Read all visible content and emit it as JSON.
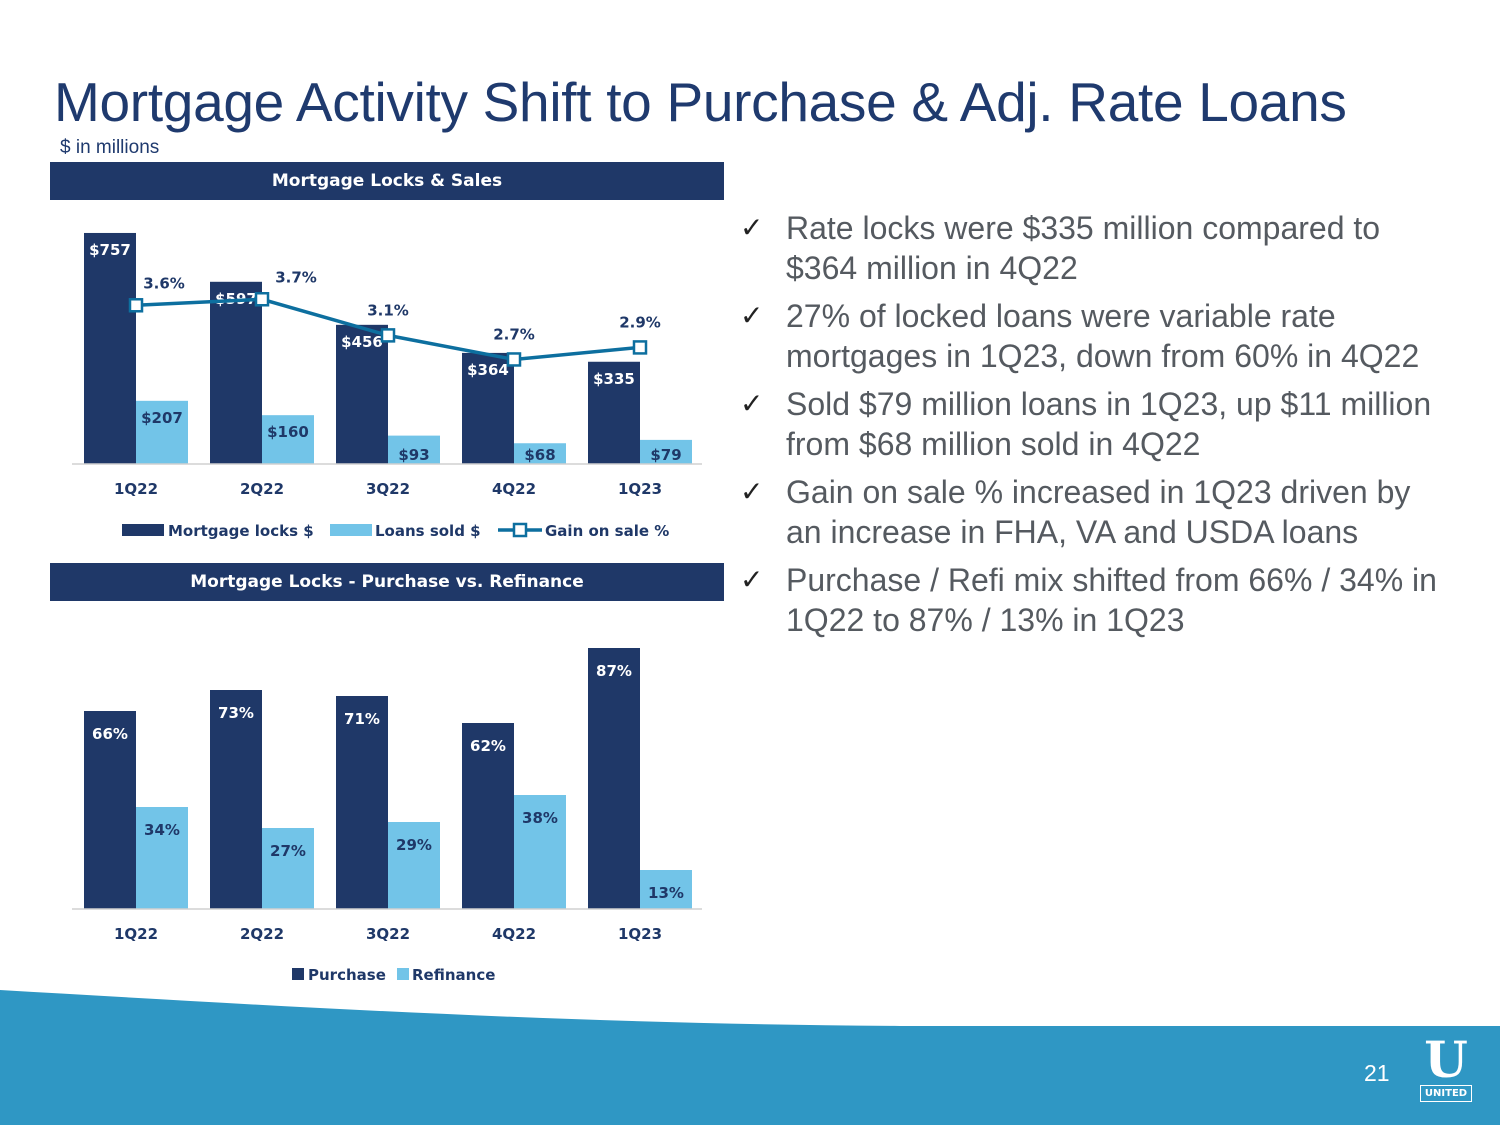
{
  "slide": {
    "title": "Mortgage Activity Shift to Purchase & Adj. Rate Loans",
    "subtitle": "$ in millions",
    "page_number": "21",
    "logo": {
      "mark": "U",
      "wordmark": "UNITED"
    }
  },
  "colors": {
    "navy": "#1f3868",
    "light_blue": "#72c4e8",
    "line_blue": "#0d6f9f",
    "text_gray": "#555a60",
    "footer_blue": "#2f97c4"
  },
  "bullets": [
    {
      "icon": "check-icon",
      "text": "Rate locks were $335 million compared to $364 million in 4Q22"
    },
    {
      "icon": "check-icon",
      "text": "27% of locked loans were variable rate mortgages in 1Q23, down from 60% in 4Q22"
    },
    {
      "icon": "check-icon",
      "text": "Sold $79 million loans in 1Q23, up $11 million from $68 million sold in 4Q22"
    },
    {
      "icon": "check-icon",
      "text": "Gain on sale % increased in 1Q23 driven by an increase in FHA, VA and USDA loans"
    },
    {
      "icon": "check-icon",
      "text": "Purchase / Refi mix shifted from 66% / 34% in 1Q22 to 87% / 13% in 1Q23"
    }
  ],
  "chart_data": [
    {
      "type": "bar",
      "title": "Mortgage Locks & Sales",
      "categories": [
        "1Q22",
        "2Q22",
        "3Q22",
        "4Q22",
        "1Q23"
      ],
      "ylim": [
        0,
        800
      ],
      "series": [
        {
          "name": "Mortgage locks $",
          "kind": "bar",
          "values": [
            757,
            597,
            456,
            364,
            335
          ],
          "labels": [
            "$757",
            "$597",
            "$456",
            "$364",
            "$335"
          ]
        },
        {
          "name": "Loans sold $",
          "kind": "bar",
          "values": [
            207,
            160,
            93,
            68,
            79
          ],
          "labels": [
            "$207",
            "$160",
            "$93",
            "$68",
            "$79"
          ]
        },
        {
          "name": "Gain on sale %",
          "kind": "line",
          "axis": "secondary",
          "values": [
            3.6,
            3.7,
            3.1,
            2.7,
            2.9
          ],
          "labels": [
            "3.6%",
            "3.7%",
            "3.1%",
            "2.7%",
            "2.9%"
          ]
        }
      ],
      "legend_position": "bottom"
    },
    {
      "type": "bar",
      "title": "Mortgage Locks - Purchase vs. Refinance",
      "categories": [
        "1Q22",
        "2Q22",
        "3Q22",
        "4Q22",
        "1Q23"
      ],
      "ylim": [
        0,
        90
      ],
      "series": [
        {
          "name": "Purchase",
          "values": [
            66,
            73,
            71,
            62,
            87
          ],
          "labels": [
            "66%",
            "73%",
            "71%",
            "62%",
            "87%"
          ]
        },
        {
          "name": "Refinance",
          "values": [
            34,
            27,
            29,
            38,
            13
          ],
          "labels": [
            "34%",
            "27%",
            "29%",
            "38%",
            "13%"
          ]
        }
      ],
      "legend_position": "bottom"
    }
  ]
}
